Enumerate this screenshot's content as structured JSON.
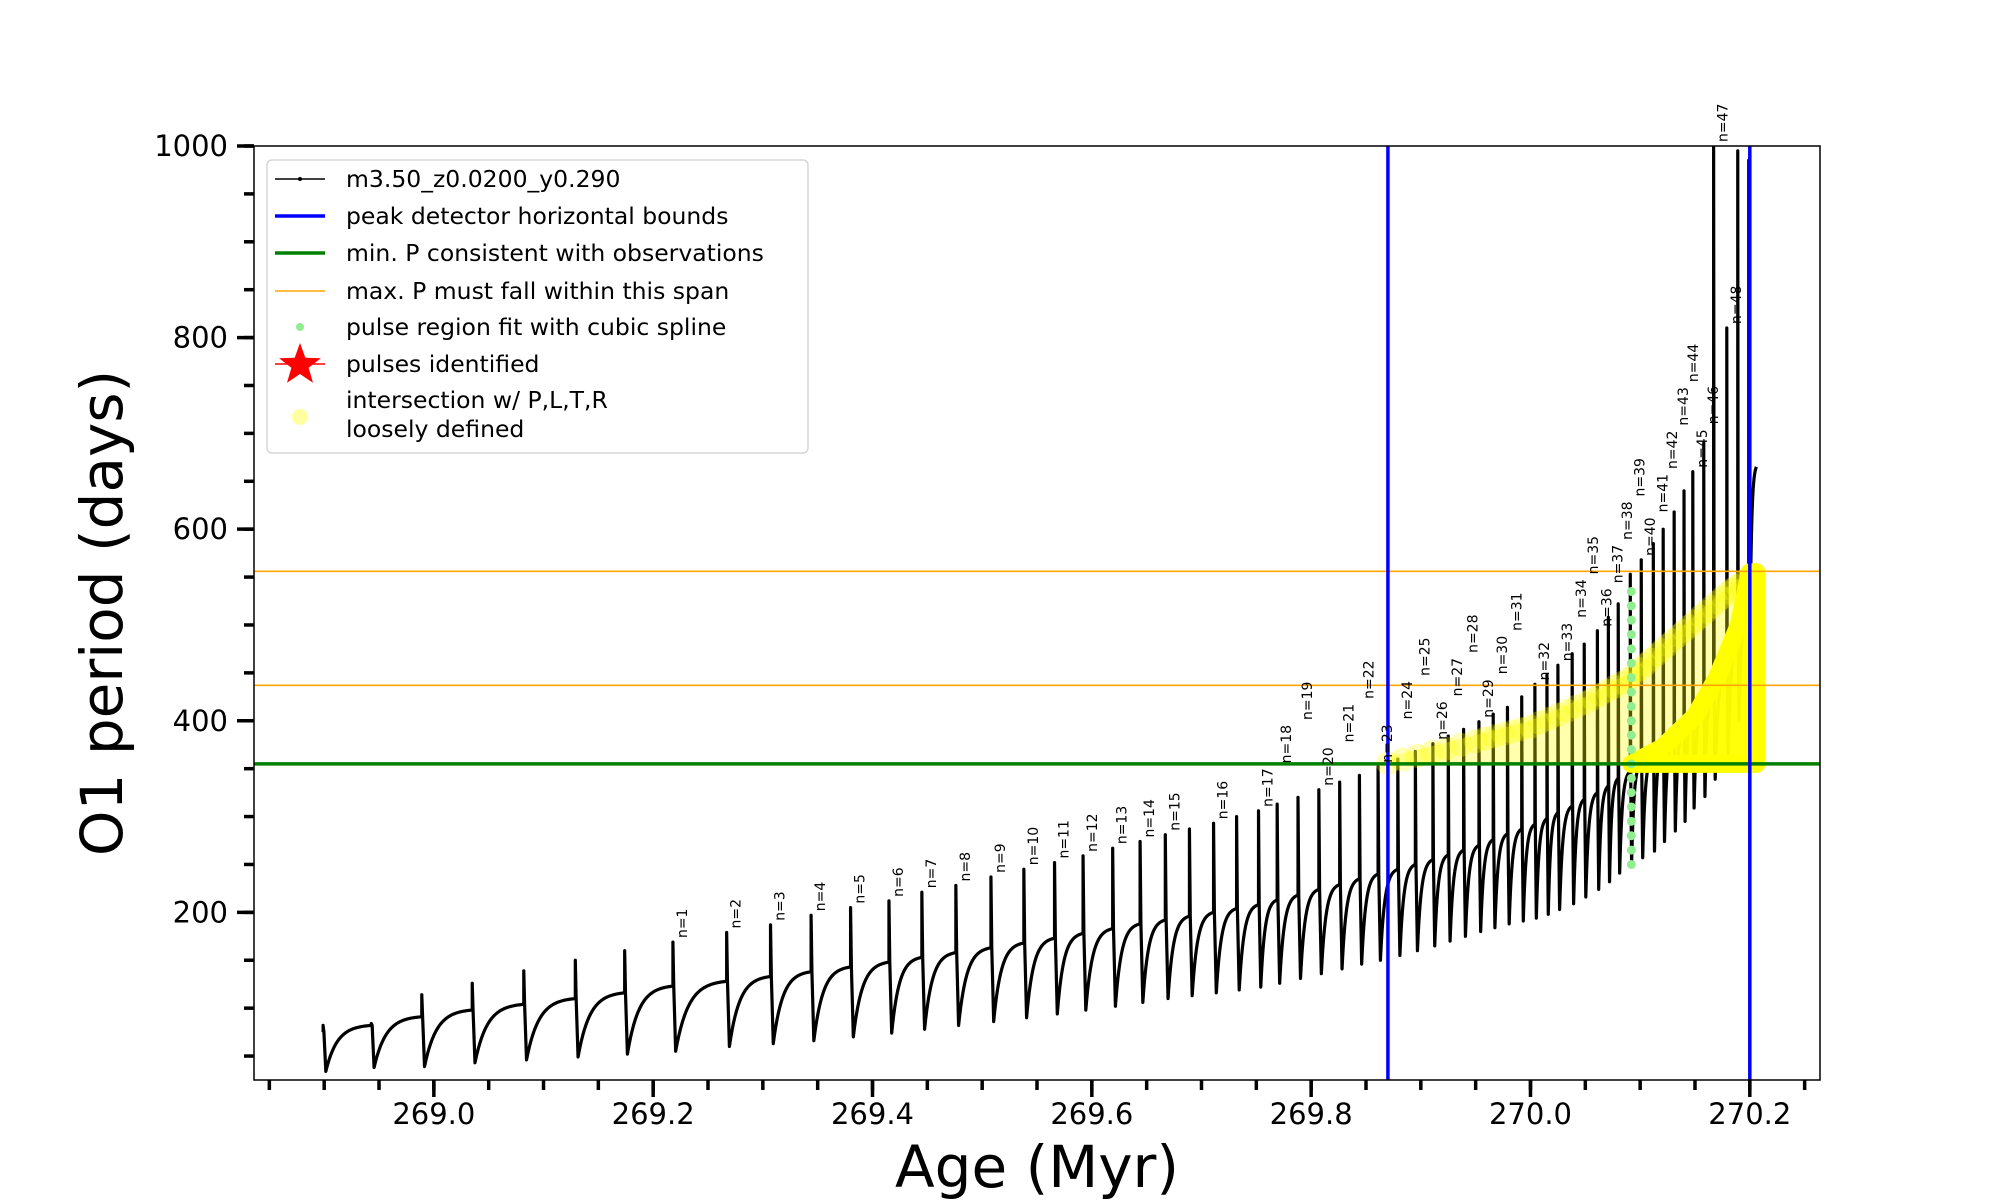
{
  "chart_data": {
    "type": "line",
    "title": "",
    "xlabel": "Age (Myr)",
    "ylabel": "O1 period (days)",
    "xlim": [
      268.836,
      270.264
    ],
    "ylim": [
      25,
      1000
    ],
    "xticks_major": [
      269.0,
      269.2,
      269.4,
      269.6,
      269.8,
      270.0,
      270.2
    ],
    "xtick_labels": [
      "269.0",
      "269.2",
      "269.4",
      "269.6",
      "269.8",
      "270.0",
      "270.2"
    ],
    "xtick_minor_step": 0.05,
    "yticks_major": [
      200,
      400,
      600,
      800,
      1000
    ],
    "ytick_labels": [
      "200",
      "400",
      "600",
      "800",
      "1000"
    ],
    "ytick_minor_step": 50,
    "grid": false,
    "legend_placement": "upper-left",
    "legend": [
      {
        "label": "m3.50_z0.0200_y0.290",
        "kind": "line-dot",
        "color": "#000000"
      },
      {
        "label": "peak detector horizontal bounds",
        "kind": "line-thick",
        "color": "#0000ff"
      },
      {
        "label": "min. P consistent with observations",
        "kind": "line-thick",
        "color": "#008000"
      },
      {
        "label": "max. P must fall within this span",
        "kind": "line-thin",
        "color": "#ffa500"
      },
      {
        "label": "pulse region fit with cubic spline",
        "kind": "dot",
        "color": "#90ee90"
      },
      {
        "label": "pulses identified",
        "kind": "star",
        "color": "#ff0000"
      },
      {
        "label": "intersection w/ P,L,T,R",
        "label2": "loosely defined",
        "kind": "circle",
        "color": "#ffffa0"
      }
    ],
    "series": {
      "name": "m3.50_z0.0200_y0.290",
      "color": "#000000",
      "pulses": [
        {
          "label": "",
          "age": 268.899,
          "base": 75,
          "peak": 82,
          "trough": 34
        },
        {
          "label": "",
          "age": 268.943,
          "base": 82,
          "peak": 84,
          "trough": 38
        },
        {
          "label": "",
          "age": 268.989,
          "base": 91,
          "peak": 114,
          "trough": 39
        },
        {
          "label": "",
          "age": 269.035,
          "base": 98,
          "peak": 126,
          "trough": 43
        },
        {
          "label": "",
          "age": 269.082,
          "base": 104,
          "peak": 139,
          "trough": 46
        },
        {
          "label": "",
          "age": 269.129,
          "base": 110,
          "peak": 150,
          "trough": 49
        },
        {
          "label": "",
          "age": 269.174,
          "base": 116,
          "peak": 160,
          "trough": 52
        },
        {
          "label": "n=1",
          "age": 269.218,
          "base": 123,
          "peak": 169,
          "trough": 55
        },
        {
          "label": "n=2",
          "age": 269.267,
          "base": 128,
          "peak": 179,
          "trough": 60
        },
        {
          "label": "n=3",
          "age": 269.307,
          "base": 133,
          "peak": 187,
          "trough": 63
        },
        {
          "label": "n=4",
          "age": 269.344,
          "base": 138,
          "peak": 197,
          "trough": 66
        },
        {
          "label": "n=5",
          "age": 269.38,
          "base": 143,
          "peak": 205,
          "trough": 70
        },
        {
          "label": "n=6",
          "age": 269.415,
          "base": 148,
          "peak": 212,
          "trough": 74
        },
        {
          "label": "n=7",
          "age": 269.445,
          "base": 153,
          "peak": 221,
          "trough": 78
        },
        {
          "label": "n=8",
          "age": 269.476,
          "base": 158,
          "peak": 228,
          "trough": 82
        },
        {
          "label": "n=9",
          "age": 269.508,
          "base": 163,
          "peak": 237,
          "trough": 86
        },
        {
          "label": "n=10",
          "age": 269.538,
          "base": 168,
          "peak": 245,
          "trough": 90
        },
        {
          "label": "n=11",
          "age": 269.566,
          "base": 173,
          "peak": 252,
          "trough": 94
        },
        {
          "label": "n=12",
          "age": 269.592,
          "base": 178,
          "peak": 259,
          "trough": 98
        },
        {
          "label": "n=13",
          "age": 269.619,
          "base": 183,
          "peak": 267,
          "trough": 102
        },
        {
          "label": "n=14",
          "age": 269.644,
          "base": 188,
          "peak": 274,
          "trough": 106
        },
        {
          "label": "n=15",
          "age": 269.667,
          "base": 192,
          "peak": 281,
          "trough": 110
        },
        {
          "label": "",
          "age": 269.689,
          "base": 196,
          "peak": 287,
          "trough": 113
        },
        {
          "label": "n=16",
          "age": 269.711,
          "base": 200,
          "peak": 293,
          "trough": 116
        },
        {
          "label": "",
          "age": 269.732,
          "base": 204,
          "peak": 300,
          "trough": 119
        },
        {
          "label": "n=17",
          "age": 269.752,
          "base": 208,
          "peak": 306,
          "trough": 122
        },
        {
          "label": "n=18",
          "age": 269.769,
          "base": 213,
          "peak": 313,
          "trough": 126
        },
        {
          "label": "n=19",
          "age": 269.788,
          "base": 218,
          "peak": 320,
          "trough": 131
        },
        {
          "label": "n=20",
          "age": 269.807,
          "base": 224,
          "peak": 328,
          "trough": 136
        },
        {
          "label": "n=21",
          "age": 269.826,
          "base": 229,
          "peak": 336,
          "trough": 141
        },
        {
          "label": "n=22",
          "age": 269.844,
          "base": 235,
          "peak": 343,
          "trough": 146
        },
        {
          "label": "n=23",
          "age": 269.861,
          "base": 240,
          "peak": 352,
          "trough": 150
        },
        {
          "label": "n=24",
          "age": 269.879,
          "base": 245,
          "peak": 360,
          "trough": 155
        },
        {
          "label": "n=25",
          "age": 269.895,
          "base": 250,
          "peak": 368,
          "trough": 160
        },
        {
          "label": "n=26",
          "age": 269.911,
          "base": 255,
          "peak": 376,
          "trough": 165
        },
        {
          "label": "n=27",
          "age": 269.925,
          "base": 260,
          "peak": 384,
          "trough": 170
        },
        {
          "label": "n=28",
          "age": 269.939,
          "base": 265,
          "peak": 391,
          "trough": 175
        },
        {
          "label": "n=29",
          "age": 269.953,
          "base": 270,
          "peak": 399,
          "trough": 180
        },
        {
          "label": "n=30",
          "age": 269.966,
          "base": 276,
          "peak": 407,
          "trough": 184
        },
        {
          "label": "n=31",
          "age": 269.979,
          "base": 282,
          "peak": 414,
          "trough": 188
        },
        {
          "label": "",
          "age": 269.992,
          "base": 287,
          "peak": 425,
          "trough": 191
        },
        {
          "label": "n=32",
          "age": 270.004,
          "base": 292,
          "peak": 438,
          "trough": 194
        },
        {
          "label": "",
          "age": 270.015,
          "base": 298,
          "peak": 448,
          "trough": 198
        },
        {
          "label": "n=33",
          "age": 270.025,
          "base": 304,
          "peak": 458,
          "trough": 203
        },
        {
          "label": "n=34",
          "age": 270.038,
          "base": 311,
          "peak": 470,
          "trough": 209
        },
        {
          "label": "n=35",
          "age": 270.049,
          "base": 318,
          "peak": 480,
          "trough": 216
        },
        {
          "label": "n=36",
          "age": 270.061,
          "base": 325,
          "peak": 494,
          "trough": 224
        },
        {
          "label": "n=37",
          "age": 270.071,
          "base": 332,
          "peak": 508,
          "trough": 232
        },
        {
          "label": "n=38",
          "age": 270.08,
          "base": 340,
          "peak": 522,
          "trough": 241
        },
        {
          "label": "n=39",
          "age": 270.091,
          "base": 347,
          "peak": 553,
          "trough": 250
        },
        {
          "label": "n=40",
          "age": 270.101,
          "base": 356,
          "peak": 568,
          "trough": 257
        },
        {
          "label": "n=41",
          "age": 270.112,
          "base": 364,
          "peak": 585,
          "trough": 264
        },
        {
          "label": "n=42",
          "age": 270.121,
          "base": 372,
          "peak": 600,
          "trough": 274
        },
        {
          "label": "n=43",
          "age": 270.131,
          "base": 382,
          "peak": 618,
          "trough": 285
        },
        {
          "label": "n=44",
          "age": 270.14,
          "base": 392,
          "peak": 640,
          "trough": 295
        },
        {
          "label": "n=45",
          "age": 270.148,
          "base": 405,
          "peak": 660,
          "trough": 309
        },
        {
          "label": "n=46",
          "age": 270.158,
          "base": 420,
          "peak": 690,
          "trough": 321
        },
        {
          "label": "n=47",
          "age": 270.167,
          "base": 435,
          "peak": 1000,
          "trough": 339
        },
        {
          "label": "n=48",
          "age": 270.179,
          "base": 455,
          "peak": 810,
          "trough": 360
        },
        {
          "label": "",
          "age": 270.189,
          "base": 480,
          "peak": 995,
          "trough": 400
        },
        {
          "label": "",
          "age": 270.199,
          "base": 520,
          "peak": 985,
          "trough": 450
        }
      ],
      "end": {
        "age": 270.206,
        "period": 665
      }
    },
    "vertical_lines": {
      "values": [
        269.87,
        270.2
      ],
      "color": "#0000ff"
    },
    "min_period_line": {
      "value": 355,
      "color": "#008000"
    },
    "max_period_span": {
      "values": [
        437,
        556
      ],
      "color": "#ffa500"
    },
    "spline_fit_points": {
      "age": 270.092,
      "periods": [
        250,
        265,
        280,
        295,
        310,
        325,
        340,
        355,
        370,
        385,
        400,
        415,
        430,
        445,
        460,
        475,
        490,
        505,
        520,
        535
      ],
      "color": "#90ee90"
    },
    "intersection_region": {
      "color": "#ffff00",
      "loose_upper": [
        [
          269.87,
          362
        ],
        [
          269.95,
          385
        ],
        [
          270.0,
          400
        ],
        [
          270.05,
          425
        ],
        [
          270.09,
          450
        ],
        [
          270.12,
          480
        ],
        [
          270.15,
          510
        ],
        [
          270.18,
          540
        ],
        [
          270.205,
          560
        ]
      ],
      "loose_lower": 355,
      "dense": [
        [
          270.092,
          355
        ],
        [
          270.12,
          372
        ],
        [
          270.15,
          405
        ],
        [
          270.17,
          445
        ],
        [
          270.19,
          500
        ],
        [
          270.2,
          555
        ],
        [
          270.206,
          555
        ],
        [
          270.206,
          355
        ]
      ]
    }
  }
}
